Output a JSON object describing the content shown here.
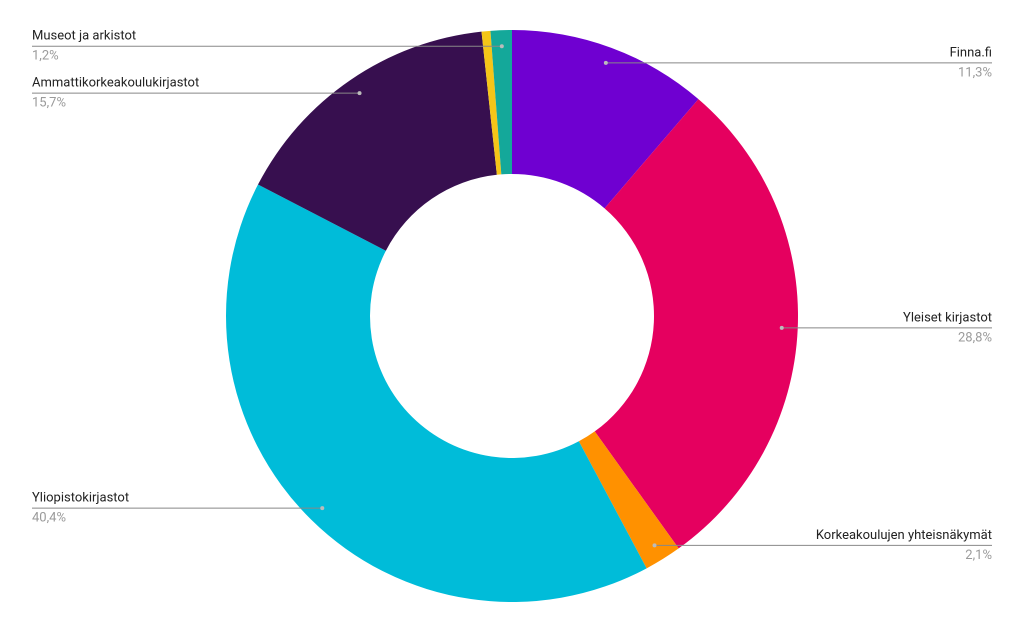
{
  "chart_data": {
    "type": "pie",
    "categories": [
      "Finna.fi",
      "Yleiset kirjastot",
      "Korkeakoulujen yhteisnäkymät",
      "Yliopistokirjastot",
      "Ammattikorkeakoulukirjastot",
      null,
      "Museot ja arkistot"
    ],
    "values": [
      11.3,
      28.8,
      2.1,
      40.4,
      15.7,
      0.5,
      1.2
    ],
    "value_labels": [
      "11,3%",
      "28,8%",
      "2,1%",
      "40,4%",
      "15,7%",
      null,
      "1,2%"
    ],
    "colors": [
      "#6f00d1",
      "#e5005f",
      "#ff9100",
      "#00bcd9",
      "#370f4f",
      "#f5c518",
      "#14a89a"
    ]
  }
}
